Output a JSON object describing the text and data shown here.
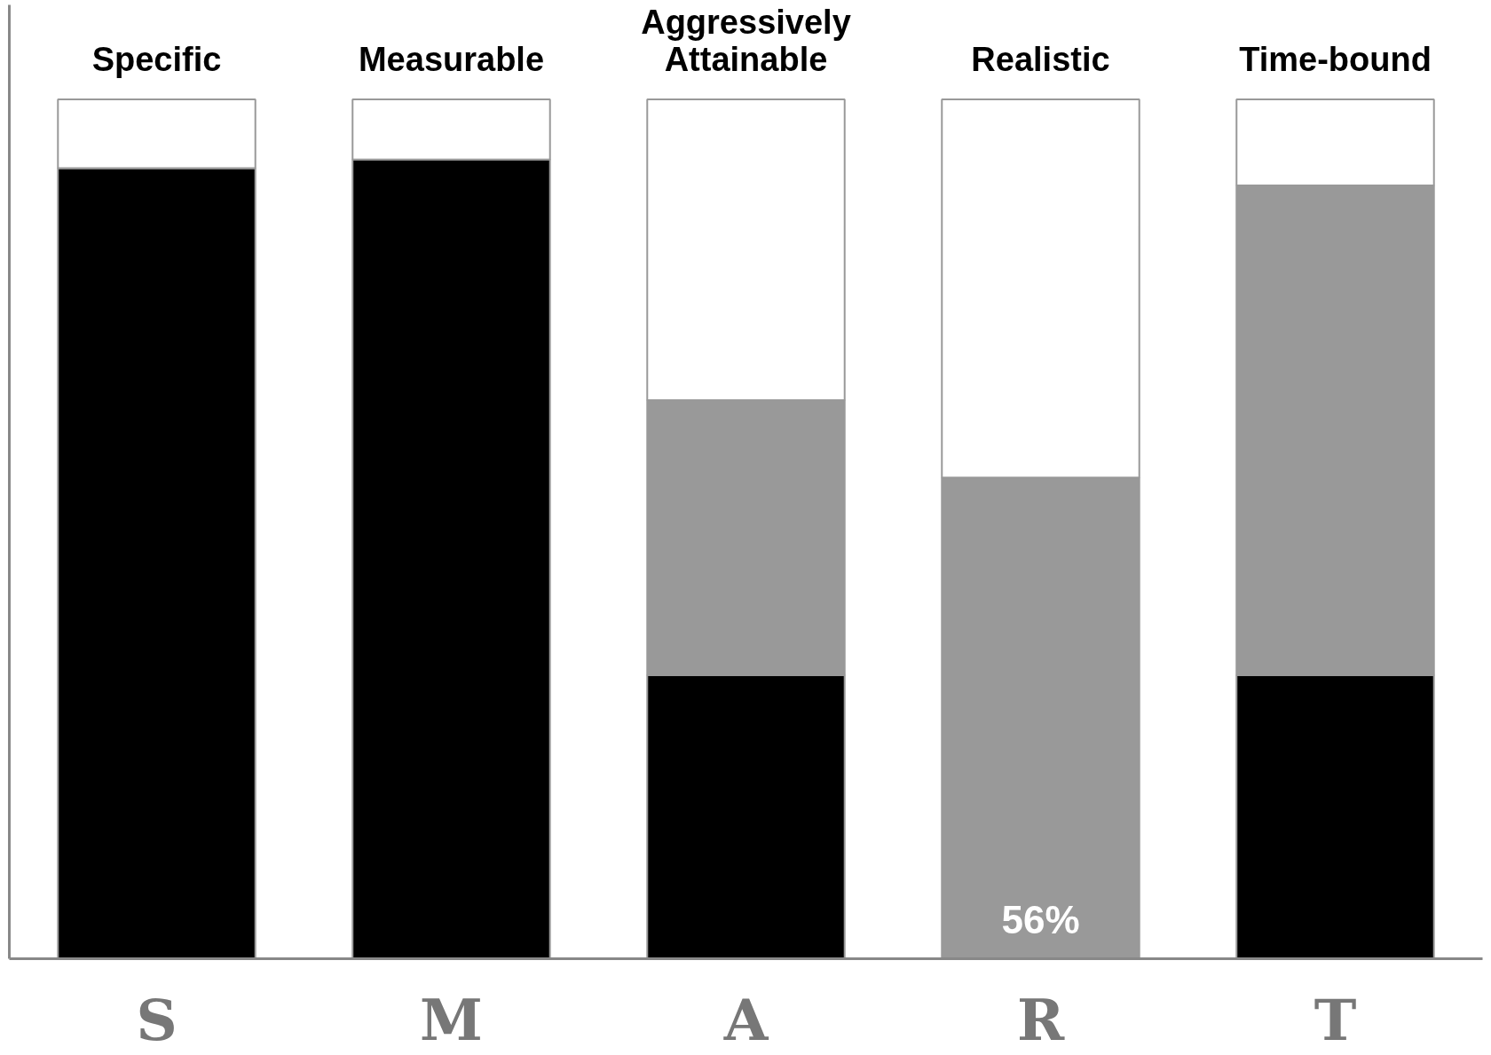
{
  "chart_data": {
    "type": "bar",
    "stacked": true,
    "tick_labels": "x",
    "ylim": [
      0,
      111
    ],
    "categories": [
      "S",
      "M",
      "A",
      "R",
      "T"
    ],
    "series": [
      {
        "color": "#000000",
        "values": [
          92,
          93,
          33,
          0,
          33
        ]
      },
      {
        "color": "#999999",
        "values": [
          0,
          0,
          32,
          56,
          57
        ],
        "value_labels": [
          null,
          null,
          null,
          "56%",
          null
        ]
      },
      {
        "color": "#ffffff",
        "values": [
          8,
          7,
          35,
          44,
          10
        ]
      }
    ],
    "annotations": [
      "Specific",
      "Measurable",
      "Aggressively\nAttainable",
      "Realistic",
      "Time-bound"
    ]
  }
}
